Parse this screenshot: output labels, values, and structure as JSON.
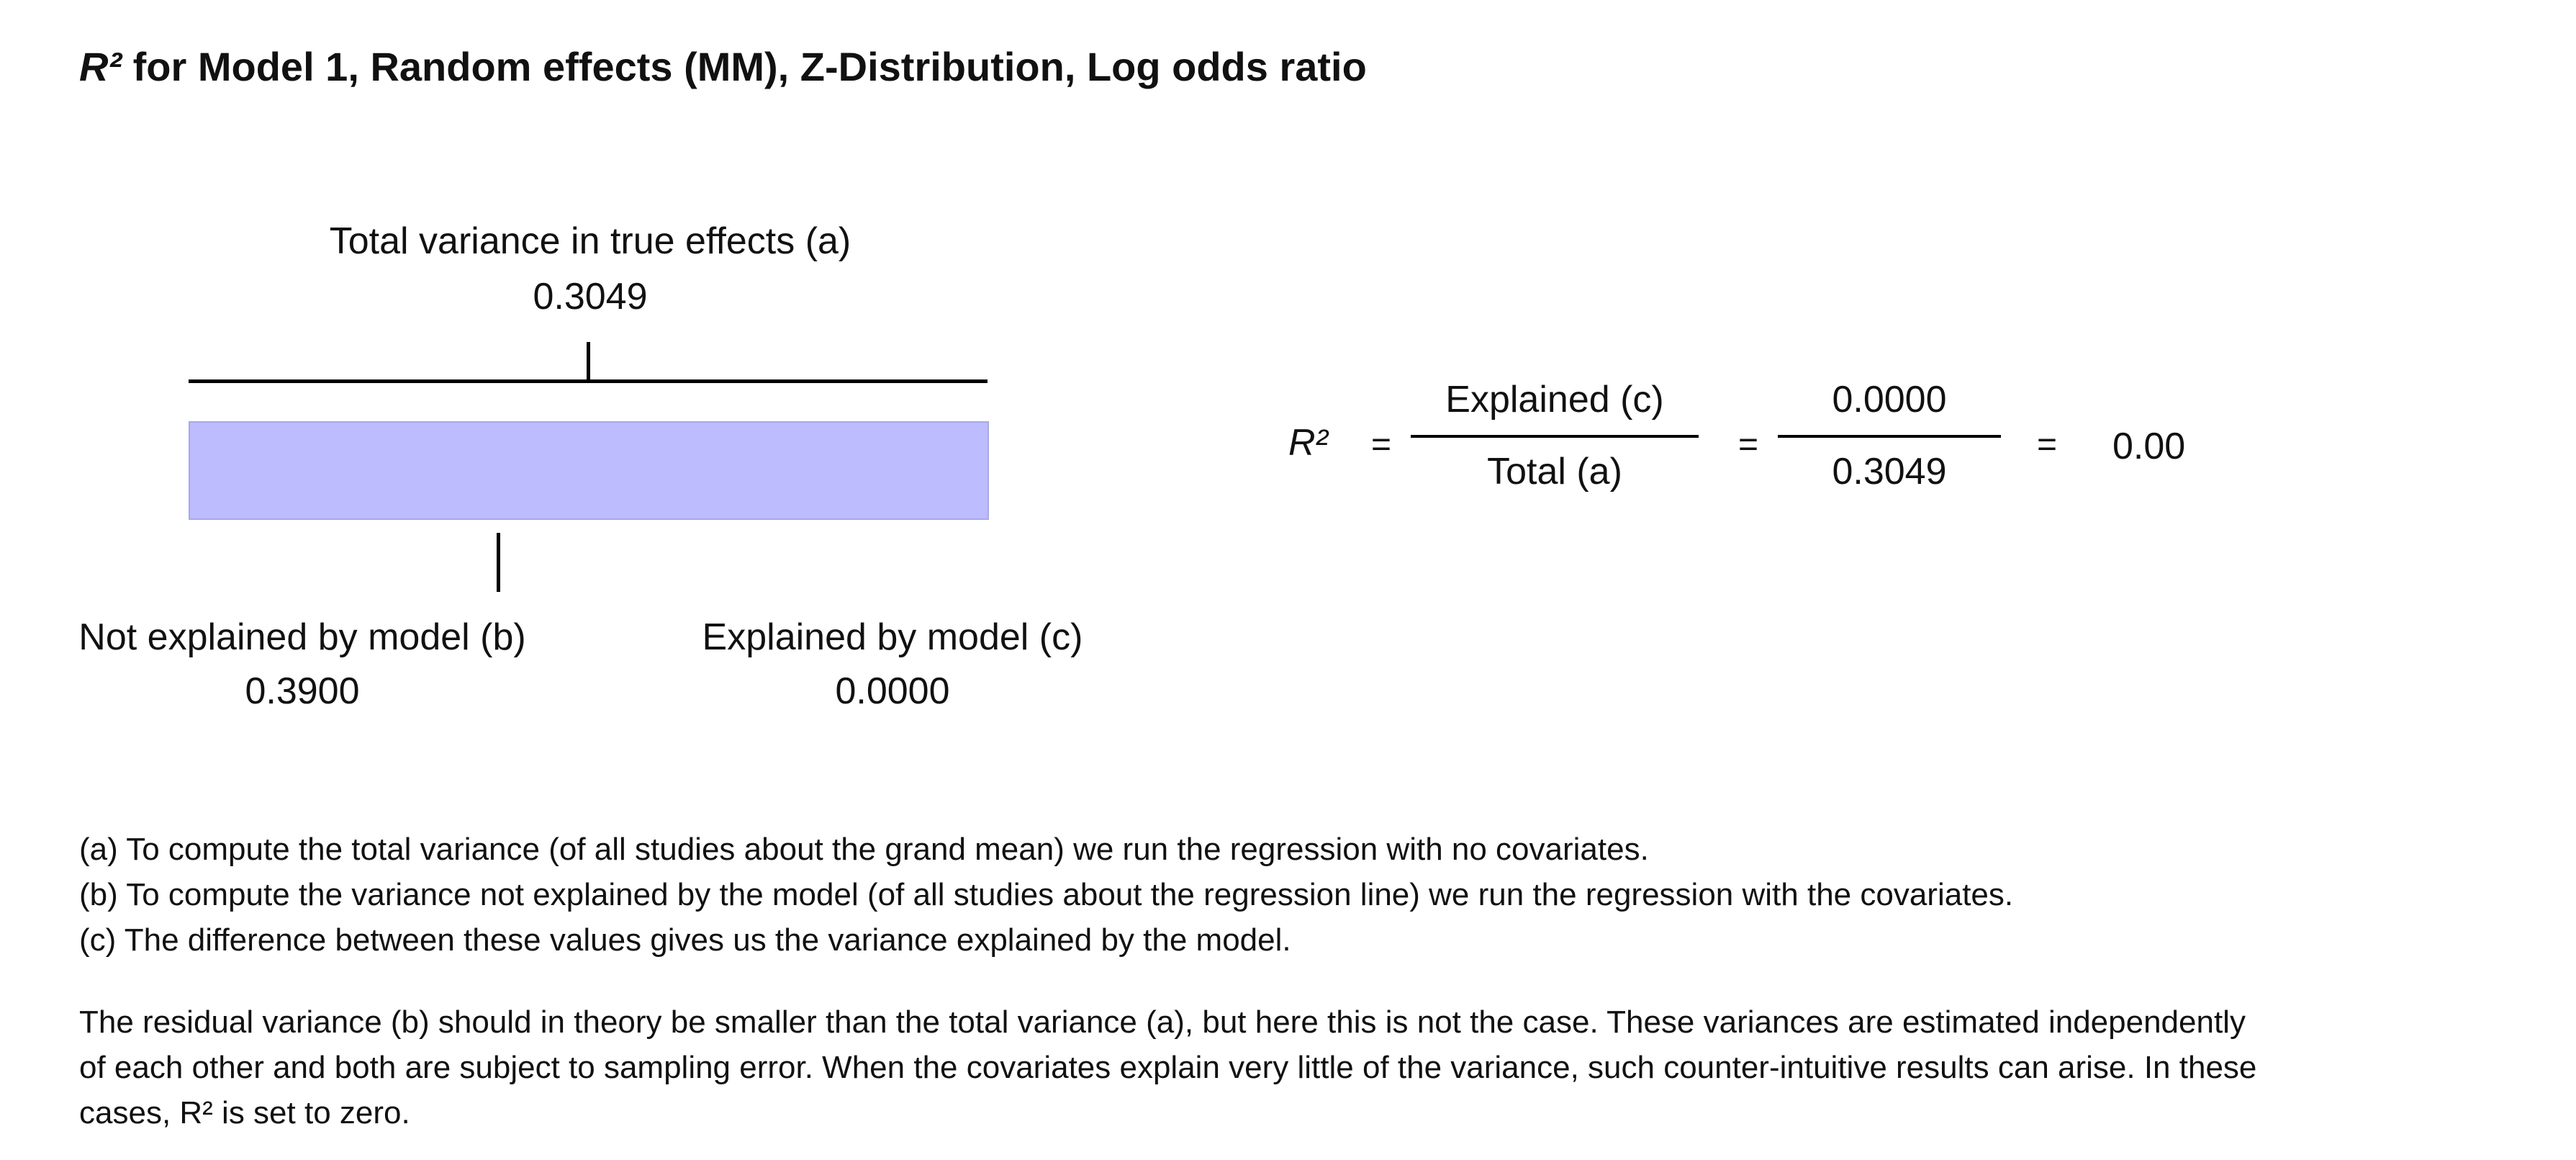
{
  "title": {
    "r2": "R²",
    "text": " for Model 1, Random effects (MM), Z-Distribution, Log odds ratio"
  },
  "diagram": {
    "total_label": "Total variance in true effects (a)",
    "total_value": "0.3049",
    "not_explained_label": "Not explained by model (b)",
    "not_explained_value": "0.3900",
    "explained_label": "Explained by model (c)",
    "explained_value": "0.0000",
    "bar_color": "#bcbcff"
  },
  "equation": {
    "r2_symbol": "R²",
    "equals": "=",
    "frac1_numerator": "Explained (c)",
    "frac1_denominator": "Total (a)",
    "frac2_numerator": "0.0000",
    "frac2_denominator": "0.3049",
    "result": "0.00"
  },
  "notes": {
    "a": "(a) To compute the total variance (of all studies about the grand mean) we run the regression with no covariates.",
    "b": "(b) To compute the variance not explained by the model (of all studies about the regression line) we run the regression with the covariates.",
    "c": "(c) The difference between these values gives us the variance explained by the model."
  },
  "paragraph": {
    "line1": "The residual variance (b) should in theory be smaller than the total variance (a), but here this is not the case. These variances are estimated independently",
    "line2": "of each other and both are subject to sampling error. When the covariates explain very little of the variance, such counter-intuitive results can arise.  In these",
    "line3": "cases, R² is set to zero."
  }
}
